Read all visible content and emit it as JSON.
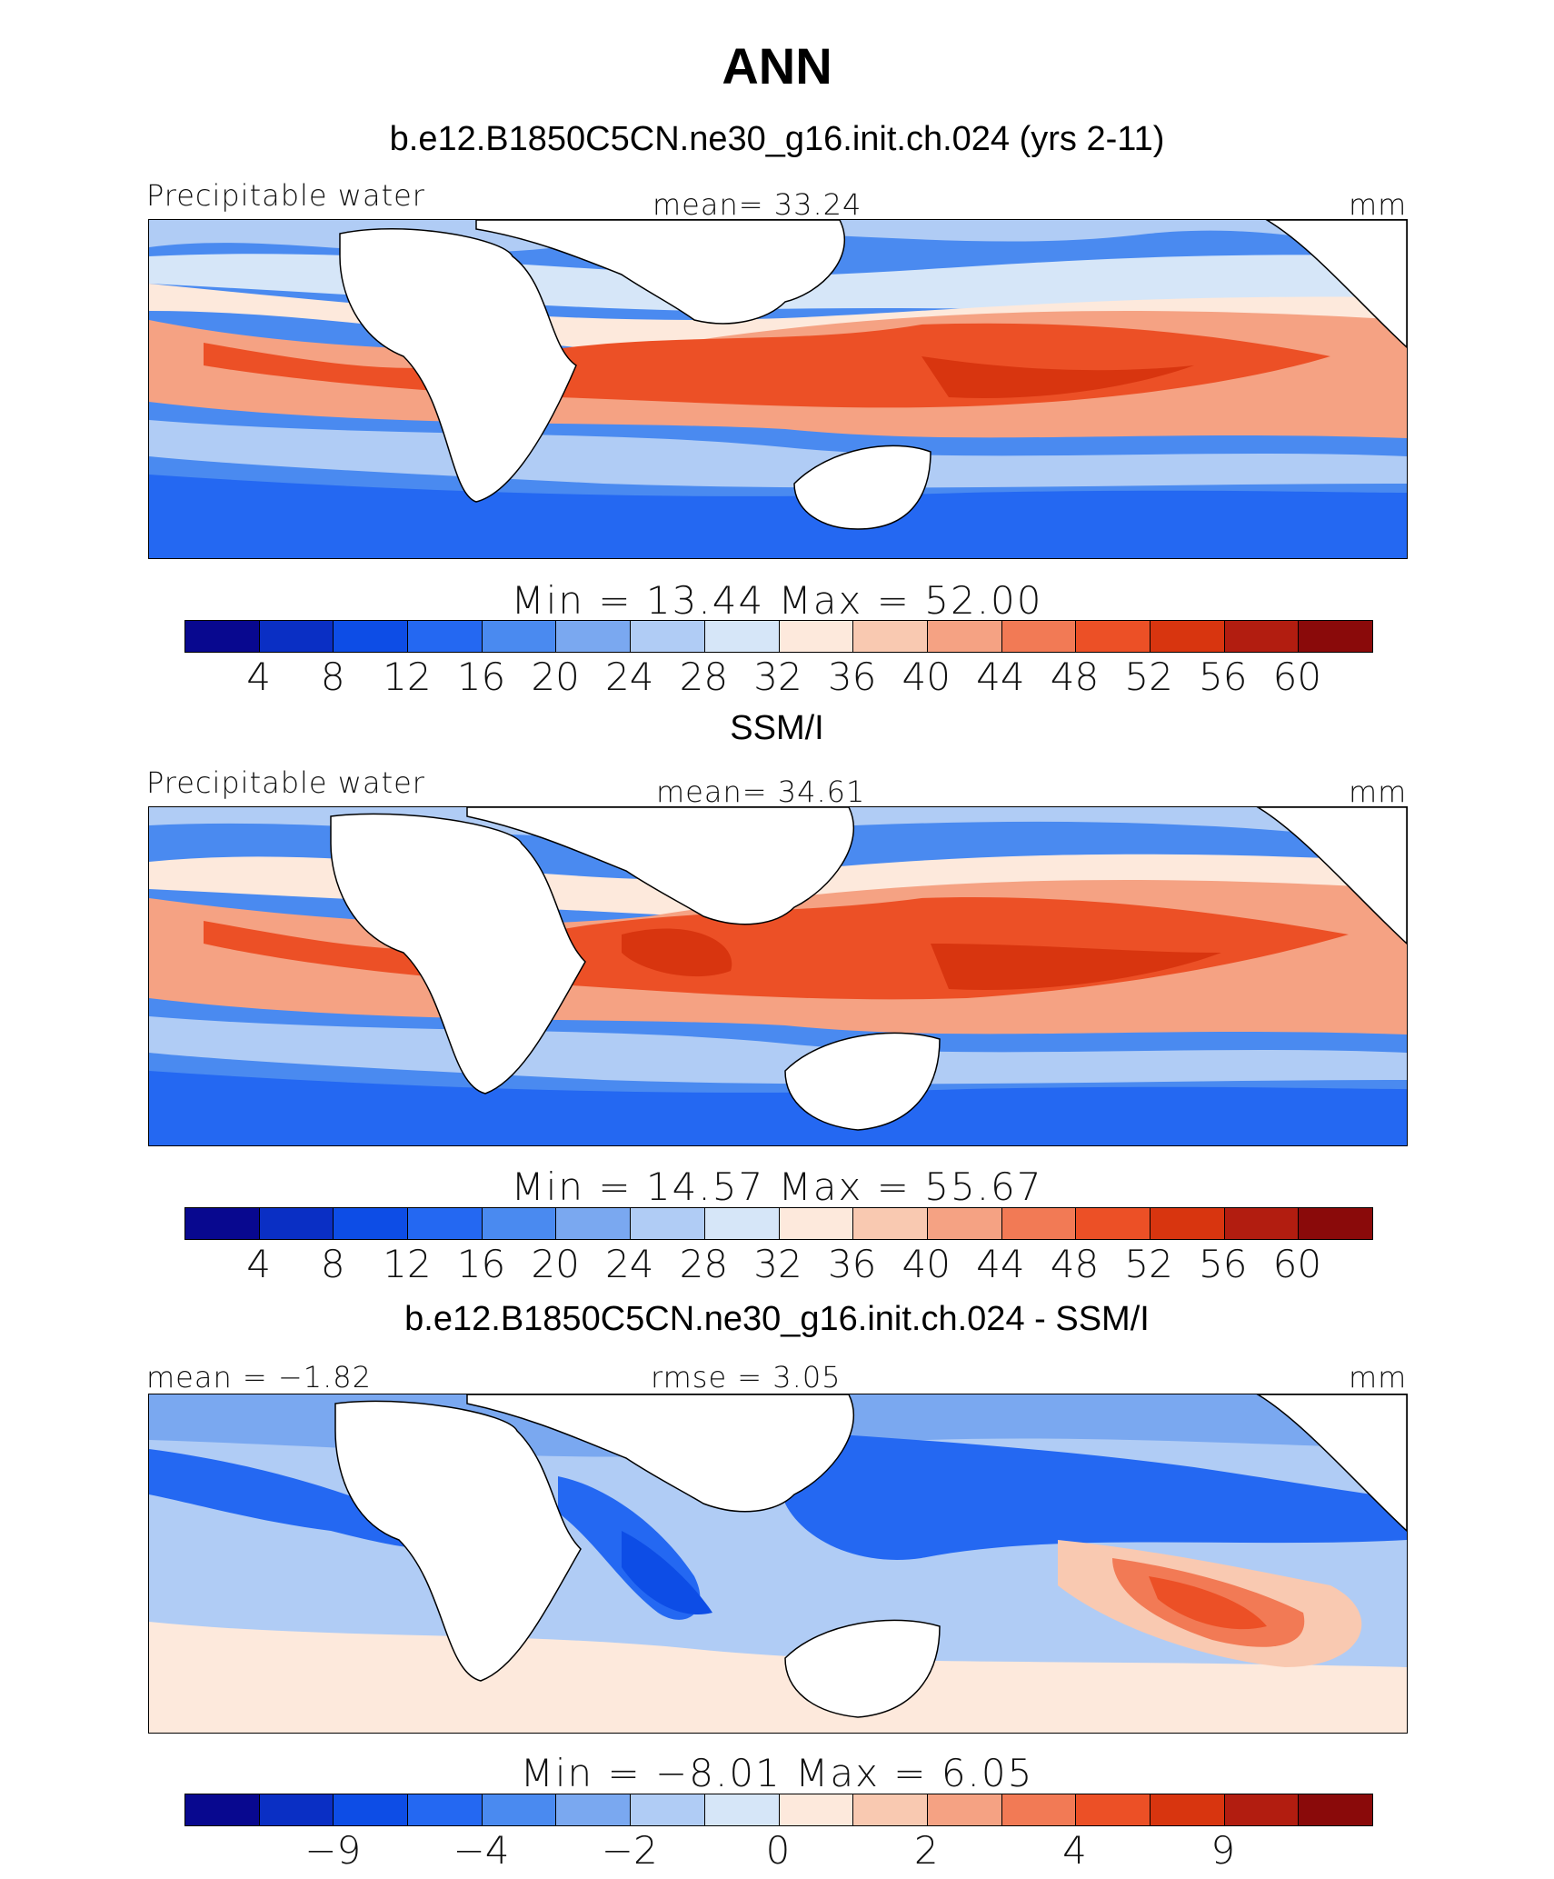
{
  "figure": {
    "title": "ANN"
  },
  "palette": [
    "#08088f",
    "#0a2fc4",
    "#0d4de6",
    "#2468f2",
    "#4a8af0",
    "#7aa8f0",
    "#b0ccf5",
    "#d6e6f8",
    "#fde9dc",
    "#f9c9b1",
    "#f5a283",
    "#f27a55",
    "#ec5026",
    "#d8350f",
    "#b21d10",
    "#8a0a0a"
  ],
  "land_color": "#ffffff",
  "panels": [
    {
      "title": "b.e12.B1850C5CN.ne30_g16.init.ch.024 (yrs 2-11)",
      "left_label": "Precipitable water",
      "center_label": "mean=  33.24",
      "units": "mm",
      "minmax": "Min  =   13.44  Max  =   52.00",
      "colorbar_ticks": [
        "4",
        "8",
        "12",
        "16",
        "20",
        "24",
        "28",
        "32",
        "36",
        "40",
        "44",
        "48",
        "52",
        "56",
        "60"
      ]
    },
    {
      "title": "SSM/I",
      "left_label": "Precipitable water",
      "center_label": "mean=  34.61",
      "units": "mm",
      "minmax": "Min  =   14.57  Max  =   55.67",
      "colorbar_ticks": [
        "4",
        "8",
        "12",
        "16",
        "20",
        "24",
        "28",
        "32",
        "36",
        "40",
        "44",
        "48",
        "52",
        "56",
        "60"
      ]
    },
    {
      "title": "b.e12.B1850C5CN.ne30_g16.init.ch.024 - SSM/I",
      "left_label": "mean =   −1.82",
      "center_label": "rmse  =     3.05",
      "units": "mm",
      "minmax": "Min  =   −8.01  Max  =     6.05",
      "colorbar_ticks": [
        "−9",
        "−4",
        "−2",
        "0",
        "2",
        "4",
        "9"
      ]
    }
  ]
}
